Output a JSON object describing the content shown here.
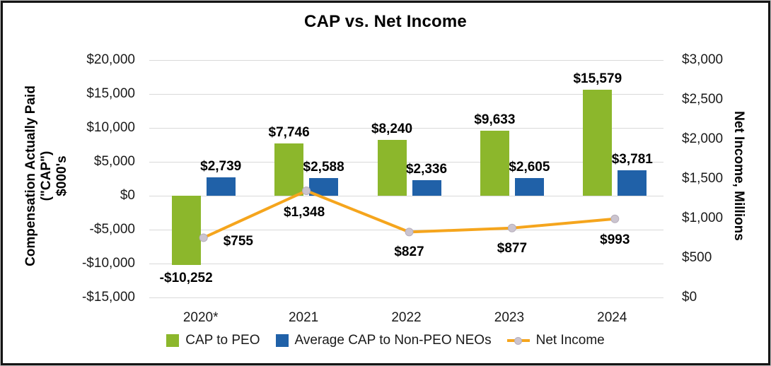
{
  "title": "CAP vs. Net Income",
  "chart_data": {
    "type": "bar",
    "subtype": "combo-bar-line",
    "categories": [
      "2020*",
      "2021",
      "2022",
      "2023",
      "2024"
    ],
    "series": [
      {
        "name": "CAP to PEO",
        "type": "bar",
        "axis": "left",
        "color": "#8CB72C",
        "values": [
          -10252,
          7746,
          8240,
          9633,
          15579
        ],
        "labels": [
          "-$10,252",
          "$7,746",
          "$8,240",
          "$9,633",
          "$15,579"
        ]
      },
      {
        "name": "Average CAP to Non-PEO NEOs",
        "type": "bar",
        "axis": "left",
        "color": "#2061A8",
        "values": [
          2739,
          2588,
          2336,
          2605,
          3781
        ],
        "labels": [
          "$2,739",
          "$2,588",
          "$2,336",
          "$2,605",
          "$3,781"
        ]
      },
      {
        "name": "Net Income",
        "type": "line",
        "axis": "right",
        "color": "#F5A51D",
        "marker_color": "#CBC4CF",
        "values": [
          755,
          1348,
          827,
          877,
          993
        ],
        "labels": [
          "$755",
          "$1,348",
          "$827",
          "$877",
          "$993"
        ]
      }
    ],
    "left_axis": {
      "title_lines": [
        "Compensation Actually Paid",
        "(\"CAP\")",
        "$000's"
      ],
      "min": -15000,
      "max": 20000,
      "step": 5000,
      "ticks": [
        "$20,000",
        "$15,000",
        "$10,000",
        "$5,000",
        "$0",
        "-$5,000",
        "-$10,000",
        "-$15,000"
      ]
    },
    "right_axis": {
      "title": "Net Income, Millions",
      "min": 0,
      "max": 3000,
      "step": 500,
      "ticks": [
        "$3,000",
        "$2,500",
        "$2,000",
        "$1,500",
        "$1,000",
        "$500",
        "$0"
      ]
    },
    "grid": true,
    "legend_position": "bottom",
    "colors": {
      "gridline": "#D9D9D9",
      "text": "#1A1A1A"
    }
  }
}
